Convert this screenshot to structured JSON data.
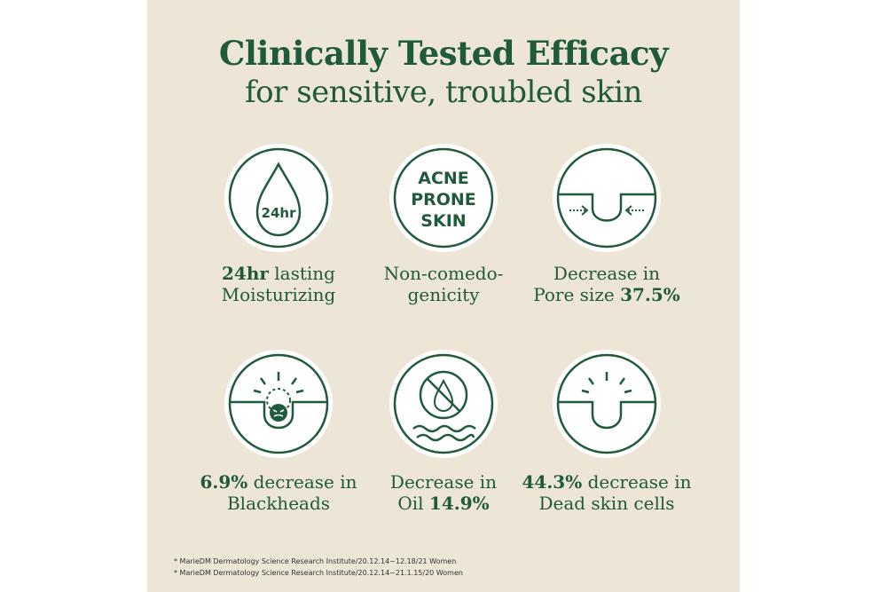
{
  "title": {
    "line1": "Clinically Tested Efficacy",
    "line2": "for sensitive, troubled skin"
  },
  "colors": {
    "accent": "#1f5a3b",
    "background": "#ede5d6",
    "badge_fill": "#ffffff"
  },
  "badges": [
    {
      "icon": "water-drop-icon",
      "icon_text": "24hr",
      "caption_bold": "24hr",
      "caption_line1_rest": " lasting",
      "caption_line2": "Moisturizing"
    },
    {
      "icon": "acne-prone-skin-icon",
      "icon_text_lines": [
        "ACNE",
        "PRONE",
        "SKIN"
      ],
      "caption_line1": "Non-comedo-",
      "caption_line2": "genicity"
    },
    {
      "icon": "pore-size-icon",
      "caption_line1": "Decrease in",
      "caption_line2_prefix": "Pore size ",
      "caption_line2_bold": "37.5%"
    },
    {
      "icon": "blackhead-icon",
      "caption_line1_bold": "6.9%",
      "caption_line1_rest": " decrease in",
      "caption_line2": "Blackheads"
    },
    {
      "icon": "no-oil-icon",
      "caption_line1": "Decrease in",
      "caption_line2_prefix": "Oil ",
      "caption_line2_bold": "14.9%"
    },
    {
      "icon": "dead-skin-cells-icon",
      "caption_line1_bold": "44.3%",
      "caption_line1_rest": " decrease in",
      "caption_line2": "Dead skin cells"
    }
  ],
  "footnotes": [
    "* MarieDM Dermatology Science Research Institute/20.12.14~12.18/21 Women",
    "* MarieDM Dermatology Science Research Institute/20.12.14~21.1.15/20 Women"
  ]
}
